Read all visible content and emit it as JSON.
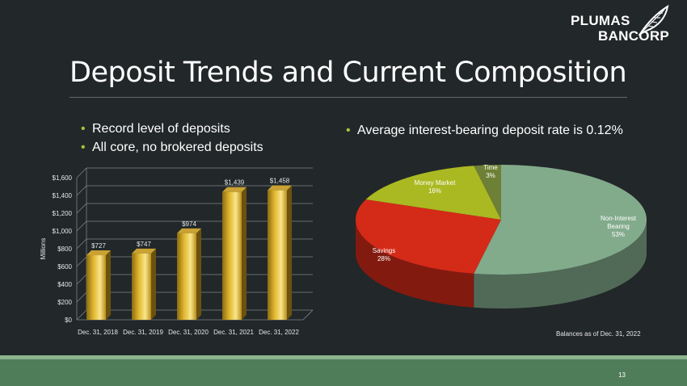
{
  "logo": {
    "line1": "PLUMAS",
    "line2": "BANCORP"
  },
  "title": "Deposit Trends and Current Composition",
  "bullets_left": [
    "Record level of deposits",
    "All core, no brokered deposits"
  ],
  "bullet_right": "Average interest-bearing deposit rate is 0.12%",
  "chart_data": [
    {
      "type": "bar",
      "categories": [
        "Dec. 31, 2018",
        "Dec. 31, 2019",
        "Dec. 31, 2020",
        "Dec. 31, 2021",
        "Dec. 31, 2022"
      ],
      "values": [
        727,
        747,
        974,
        1439,
        1458
      ],
      "value_labels": [
        "$727",
        "$747",
        "$974",
        "$1,439",
        "$1,458"
      ],
      "ylabel": "Millions",
      "ylim": [
        0,
        1600
      ],
      "yticks": [
        "$0",
        "$200",
        "$400",
        "$600",
        "$800",
        "$1,000",
        "$1,200",
        "$1,400",
        "$1,600"
      ],
      "grid": true,
      "bar_color": "#e0b52c"
    },
    {
      "type": "pie",
      "slices": [
        {
          "label": "Non-Interest Bearing",
          "pct_label": "53%",
          "value": 53,
          "color": "#82ab8c"
        },
        {
          "label": "Savings",
          "pct_label": "28%",
          "value": 28,
          "color": "#d42a18"
        },
        {
          "label": "Money Market",
          "pct_label": "16%",
          "value": 16,
          "color": "#aab921"
        },
        {
          "label": "Time",
          "pct_label": "3%",
          "value": 3,
          "color": "#6e8035"
        }
      ],
      "note": "Balances as of Dec. 31, 2022"
    }
  ],
  "page_number": "13",
  "colors": {
    "background": "#222729",
    "accent": "#a8c23a",
    "footer": "#4f7d5a"
  }
}
